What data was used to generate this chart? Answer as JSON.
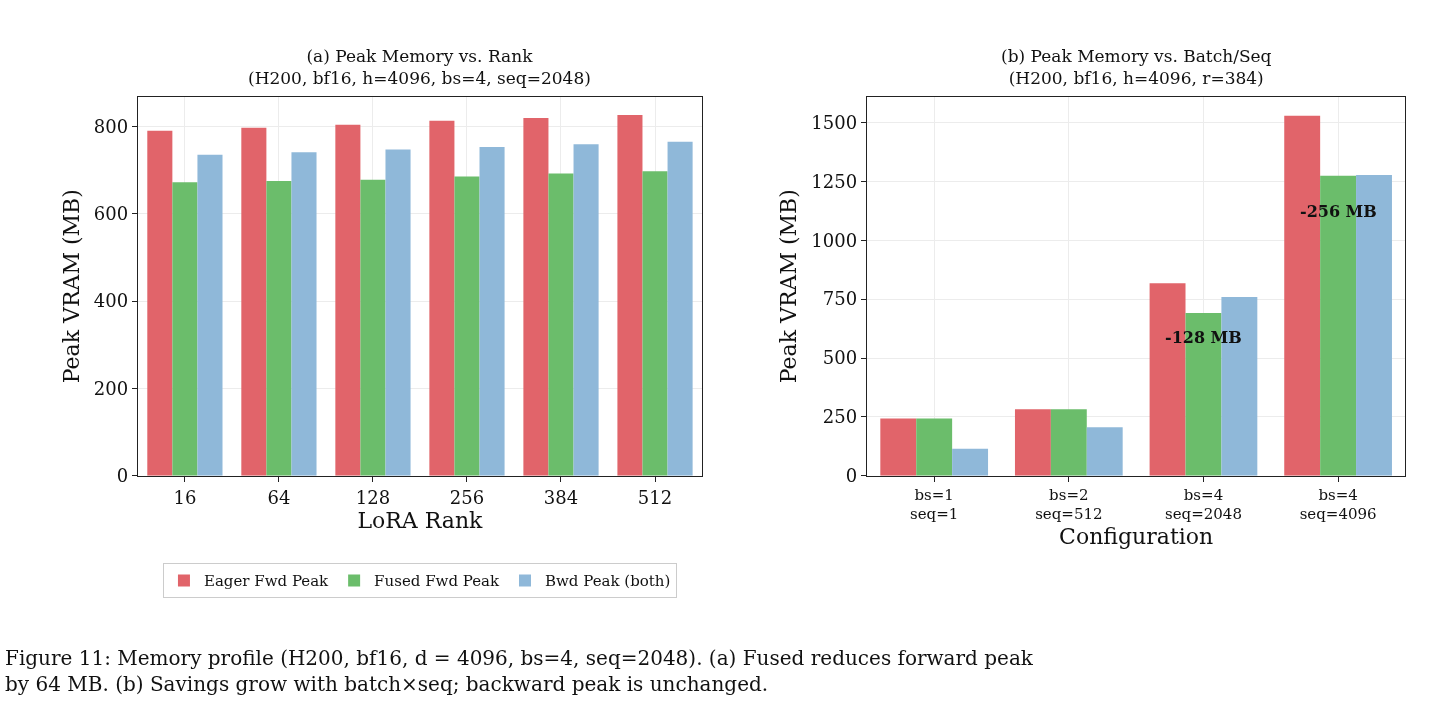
{
  "chart_data": [
    {
      "type": "bar",
      "title": "(a) Peak Memory vs. Rank\n(H200, bf16, h=4096, bs=4, seq=2048)",
      "xlabel": "LoRA Rank",
      "ylabel": "Peak VRAM (MB)",
      "categories": [
        "16",
        "64",
        "128",
        "256",
        "384",
        "512"
      ],
      "series": [
        {
          "name": "Eager Fwd Peak",
          "color": "#e1646a",
          "values": [
            790,
            797,
            804,
            813,
            819,
            826
          ]
        },
        {
          "name": "Fused Fwd Peak",
          "color": "#6bbd6b",
          "values": [
            672,
            675,
            678,
            685,
            692,
            697
          ]
        },
        {
          "name": "Bwd Peak (both)",
          "color": "#8fb8d9",
          "values": [
            735,
            741,
            747,
            753,
            759,
            765
          ]
        }
      ],
      "ylim": [
        0,
        868
      ],
      "yticks": [
        0,
        200,
        400,
        600,
        800
      ],
      "grid": true,
      "legend": "bottom",
      "annotations": [
        "Figure 11: Memory profile (H200, bf16, d = 4096, bs=4, seq=2048). (a) Fused reduces forward peak\nby 64 MB. (b) Savings grow with batch×seq; backward peak is unchanged."
      ]
    },
    {
      "type": "bar",
      "title": "(b) Peak Memory vs. Batch/Seq\n(H200, bf16, h=4096, r=384)",
      "xlabel": "Configuration",
      "ylabel": "Peak VRAM (MB)",
      "categories": [
        "bs=1\nseq=1",
        "bs=2\nseq=512",
        "bs=4\nseq=2048",
        "bs=4\nseq=4096"
      ],
      "series": [
        {
          "color": "#e1646a",
          "values": [
            243,
            283,
            818,
            1529
          ]
        },
        {
          "color": "#6bbd6b",
          "values": [
            243,
            283,
            691,
            1274
          ]
        },
        {
          "color": "#8fb8d9",
          "values": [
            115,
            206,
            759,
            1277
          ]
        }
      ],
      "ylim": [
        0,
        1610
      ],
      "yticks": [
        0,
        250,
        500,
        750,
        1000,
        1250,
        1500
      ],
      "grid": true,
      "legend": false,
      "annotations": [
        "-128 MB",
        "-256 MB"
      ]
    }
  ]
}
